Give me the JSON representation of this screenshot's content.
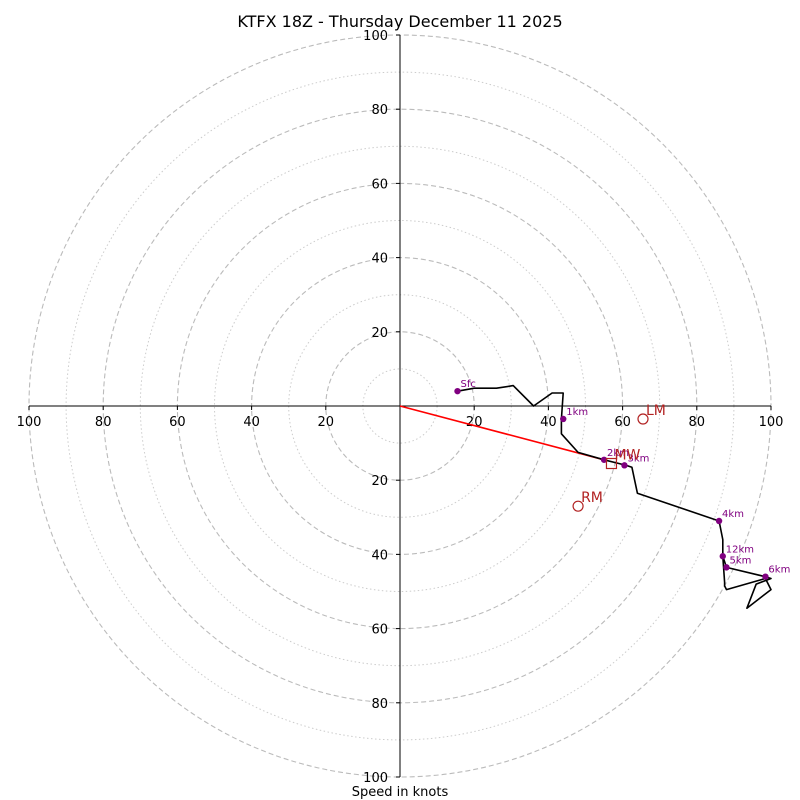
{
  "chart_data": {
    "type": "hodograph",
    "title": "KTFX 18Z - Thursday December 11 2025",
    "xlabel": "Speed in knots",
    "units": "knots",
    "max_speed": 100,
    "ring_major": [
      20,
      40,
      60,
      80,
      100
    ],
    "ring_minor": [
      10,
      30,
      50,
      70,
      90
    ],
    "x_ticks": [
      "100",
      "80",
      "60",
      "40",
      "20",
      "20",
      "40",
      "60",
      "80",
      "100"
    ],
    "x_tick_values": [
      -100,
      -80,
      -60,
      -40,
      -20,
      20,
      40,
      60,
      80,
      100
    ],
    "y_ticks": [
      "100",
      "80",
      "60",
      "40",
      "20",
      "20",
      "40",
      "60",
      "80",
      "100"
    ],
    "y_tick_values": [
      100,
      80,
      60,
      40,
      20,
      -20,
      -40,
      -60,
      -80,
      -100
    ],
    "trace_color": "#000000",
    "marker_color": "#800080",
    "motion_color": "#b22222",
    "shear_color": "#ff0000",
    "grid_color": "#bbbbbb",
    "trace": [
      [
        15.5,
        4.0
      ],
      [
        20,
        4.8
      ],
      [
        26,
        4.8
      ],
      [
        30.5,
        5.5
      ],
      [
        36,
        0
      ],
      [
        41,
        3.5
      ],
      [
        44,
        3.5
      ],
      [
        43.5,
        -3.5
      ],
      [
        43.5,
        -7.5
      ],
      [
        48,
        -12.5
      ],
      [
        55,
        -14.5
      ],
      [
        59,
        -15.5
      ],
      [
        61,
        -16
      ],
      [
        62.5,
        -16.5
      ],
      [
        64,
        -23.5
      ],
      [
        86,
        -31
      ],
      [
        87,
        -36
      ],
      [
        87,
        -40.5
      ],
      [
        88,
        -43.5
      ],
      [
        98.5,
        -46
      ],
      [
        100,
        -46.5
      ],
      [
        96,
        -48
      ],
      [
        93.5,
        -54.5
      ],
      [
        100,
        -49.5
      ],
      [
        98.5,
        -46.5
      ],
      [
        88,
        -49.5
      ],
      [
        87.5,
        -48.5
      ],
      [
        87.5,
        -47.5
      ],
      [
        87,
        -40.5
      ]
    ],
    "height_points": [
      {
        "label": "Sfc",
        "u": 15.5,
        "v": 4.0
      },
      {
        "label": "1km",
        "u": 44,
        "v": -3.5
      },
      {
        "label": "2km",
        "u": 55,
        "v": -14.5
      },
      {
        "label": "3km",
        "u": 60.5,
        "v": -16
      },
      {
        "label": "4km",
        "u": 86,
        "v": -31
      },
      {
        "label": "5km",
        "u": 88,
        "v": -43.5
      },
      {
        "label": "6km",
        "u": 98.5,
        "v": -46
      },
      {
        "label": "12km",
        "u": 87,
        "v": -40.5
      }
    ],
    "storm_motion": [
      {
        "label": "LM",
        "u": 65.5,
        "v": -3.5,
        "marker": "circle"
      },
      {
        "label": "RM",
        "u": 48,
        "v": -27,
        "marker": "circle"
      },
      {
        "label": "MW",
        "u": 57,
        "v": -15.5,
        "marker": "square"
      }
    ],
    "shear_vector": {
      "from": [
        0,
        0
      ],
      "to": [
        55,
        -14.5
      ]
    }
  }
}
